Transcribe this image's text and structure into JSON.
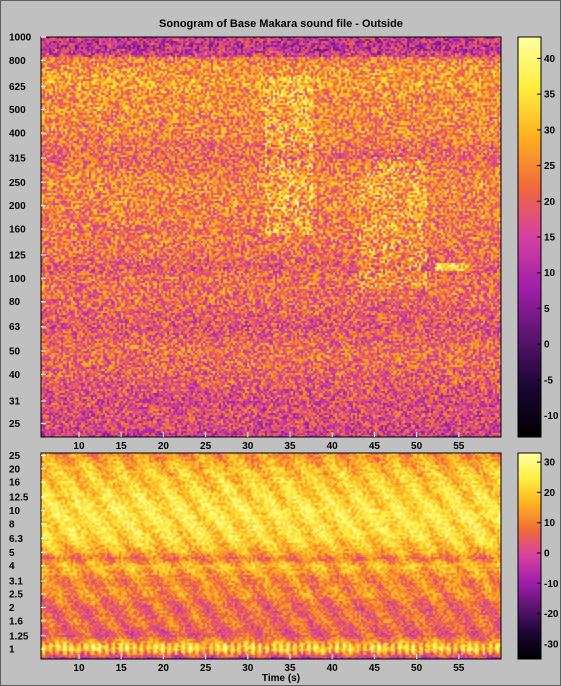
{
  "title": "Sonogram of Base Makara sound file - Outside",
  "xlabel": "Time (s)",
  "colormap": [
    "#000000",
    "#1a0633",
    "#5a1470",
    "#a020a8",
    "#d640a0",
    "#f06a3c",
    "#ffb020",
    "#ffee40",
    "#ffffa0"
  ],
  "chart_data": [
    {
      "type": "heatmap",
      "name": "upper-sonogram",
      "x_ticks": [
        10,
        15,
        20,
        25,
        30,
        35,
        40,
        45,
        50,
        55
      ],
      "x_tick_labels": [
        "10",
        "15",
        "20",
        "25",
        "30",
        "35",
        "40",
        "45",
        "50",
        "55"
      ],
      "xlim": [
        5.5,
        60
      ],
      "y_ticks": [
        "1000",
        "800",
        "625",
        "500",
        "400",
        "315",
        "250",
        "200",
        "160",
        "125",
        "100",
        "80",
        "63",
        "50",
        "40",
        "31",
        "25"
      ],
      "y_scale": "log",
      "ylim": [
        22,
        1000
      ],
      "colorbar_ticks": [
        40,
        35,
        30,
        25,
        20,
        15,
        10,
        5,
        0,
        -5,
        -10
      ],
      "colorbar_tick_labels": [
        "40",
        "35",
        "30",
        "25",
        "20",
        "15",
        "10",
        "5",
        "0",
        "-5",
        "-10"
      ],
      "clim": [
        -13,
        43
      ],
      "band_profile": [
        [
          1000,
          20
        ],
        [
          900,
          18
        ],
        [
          800,
          24
        ],
        [
          700,
          27
        ],
        [
          625,
          27
        ],
        [
          560,
          25
        ],
        [
          500,
          26
        ],
        [
          450,
          24
        ],
        [
          400,
          25
        ],
        [
          350,
          22
        ],
        [
          315,
          21
        ],
        [
          280,
          23
        ],
        [
          250,
          25
        ],
        [
          200,
          24
        ],
        [
          160,
          23
        ],
        [
          125,
          22
        ],
        [
          110,
          19
        ],
        [
          100,
          22
        ],
        [
          80,
          21
        ],
        [
          63,
          18
        ],
        [
          50,
          22
        ],
        [
          40,
          20
        ],
        [
          31,
          17
        ],
        [
          25,
          17
        ],
        [
          22,
          14
        ]
      ]
    },
    {
      "type": "heatmap",
      "name": "lower-sonogram",
      "x_ticks": [
        10,
        15,
        20,
        25,
        30,
        35,
        40,
        45,
        50,
        55
      ],
      "x_tick_labels": [
        "10",
        "15",
        "20",
        "25",
        "30",
        "35",
        "40",
        "45",
        "50",
        "55"
      ],
      "xlim": [
        5.5,
        60
      ],
      "y_ticks": [
        "25",
        "20",
        "16",
        "12.5",
        "10",
        "8",
        "6.3",
        "5",
        "4",
        "3.1",
        "2.5",
        "2",
        "1.6",
        "1.25",
        "1"
      ],
      "y_scale": "log",
      "ylim": [
        0.85,
        26
      ],
      "colorbar_ticks": [
        30,
        20,
        10,
        0,
        -10,
        -20,
        -30
      ],
      "colorbar_tick_labels": [
        "30",
        "20",
        "10",
        "0",
        "-10",
        "-20",
        "-30"
      ],
      "clim": [
        -35,
        33
      ],
      "band_profile": [
        [
          26,
          12
        ],
        [
          20,
          18
        ],
        [
          16,
          20
        ],
        [
          12.5,
          22
        ],
        [
          10,
          24
        ],
        [
          8,
          23
        ],
        [
          6.3,
          22
        ],
        [
          5,
          16
        ],
        [
          4.5,
          8
        ],
        [
          4,
          18
        ],
        [
          3.1,
          10
        ],
        [
          2.5,
          12
        ],
        [
          2,
          6
        ],
        [
          1.6,
          8
        ],
        [
          1.25,
          4
        ],
        [
          1.05,
          20
        ],
        [
          1,
          22
        ],
        [
          0.85,
          -5
        ]
      ]
    }
  ]
}
